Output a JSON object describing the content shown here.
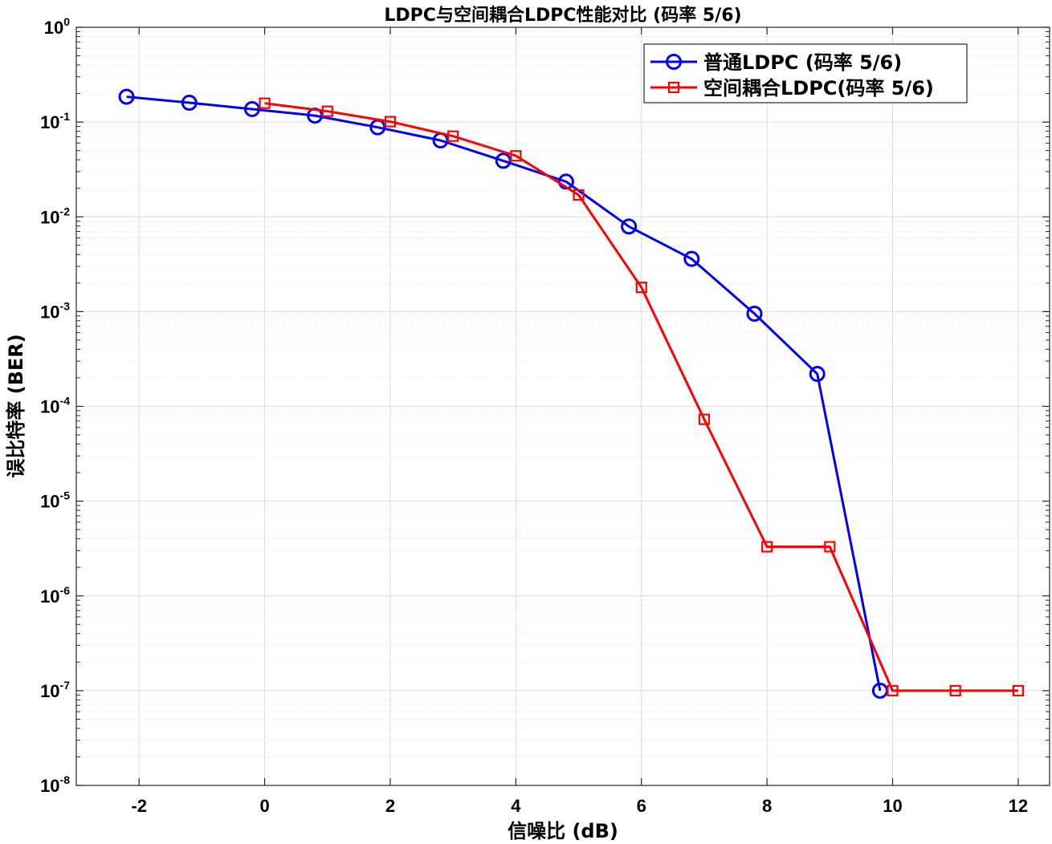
{
  "chart_data": {
    "type": "line",
    "title": "LDPC与空间耦合LDPC性能对比 (码率 5/6)",
    "xlabel": "信噪比 (dB)",
    "ylabel": "误比特率 (BER)",
    "xlim": [
      -3,
      12.5
    ],
    "ylim_exp": [
      -8,
      0
    ],
    "yscale": "log",
    "grid": true,
    "legend_position": "top-right",
    "x_ticks": [
      -2,
      0,
      2,
      4,
      6,
      8,
      10,
      12
    ],
    "y_ticks": [
      {
        "base": "10",
        "exp": "0",
        "value": 1
      },
      {
        "base": "10",
        "exp": "-1",
        "value": 0.1
      },
      {
        "base": "10",
        "exp": "-2",
        "value": 0.01
      },
      {
        "base": "10",
        "exp": "-3",
        "value": 0.001
      },
      {
        "base": "10",
        "exp": "-4",
        "value": 0.0001
      },
      {
        "base": "10",
        "exp": "-5",
        "value": 1e-05
      },
      {
        "base": "10",
        "exp": "-6",
        "value": 1e-06
      },
      {
        "base": "10",
        "exp": "-7",
        "value": 1e-07
      },
      {
        "base": "10",
        "exp": "-8",
        "value": 1e-08
      }
    ],
    "series": [
      {
        "name": "普通LDPC (码率 5/6)",
        "color": "#0000ff",
        "marker": "circle",
        "x": [
          -2.2,
          -1.2,
          -0.2,
          0.8,
          1.8,
          2.8,
          3.8,
          4.8,
          5.8,
          6.8,
          7.8,
          8.8,
          9.8
        ],
        "y": [
          0.185,
          0.16,
          0.137,
          0.117,
          0.088,
          0.064,
          0.039,
          0.0235,
          0.0079,
          0.0036,
          0.00095,
          0.00022,
          1e-07
        ]
      },
      {
        "name": "空间耦合LDPC(码率 5/6)",
        "color": "#ff0000",
        "marker": "square",
        "x": [
          0,
          1,
          2,
          3,
          4,
          5,
          6,
          7,
          8,
          9,
          10,
          11,
          12
        ],
        "y": [
          0.158,
          0.13,
          0.101,
          0.071,
          0.044,
          0.017,
          0.0018,
          7.3e-05,
          3.3e-06,
          3.3e-06,
          1e-07,
          1e-07,
          1e-07
        ]
      }
    ]
  }
}
